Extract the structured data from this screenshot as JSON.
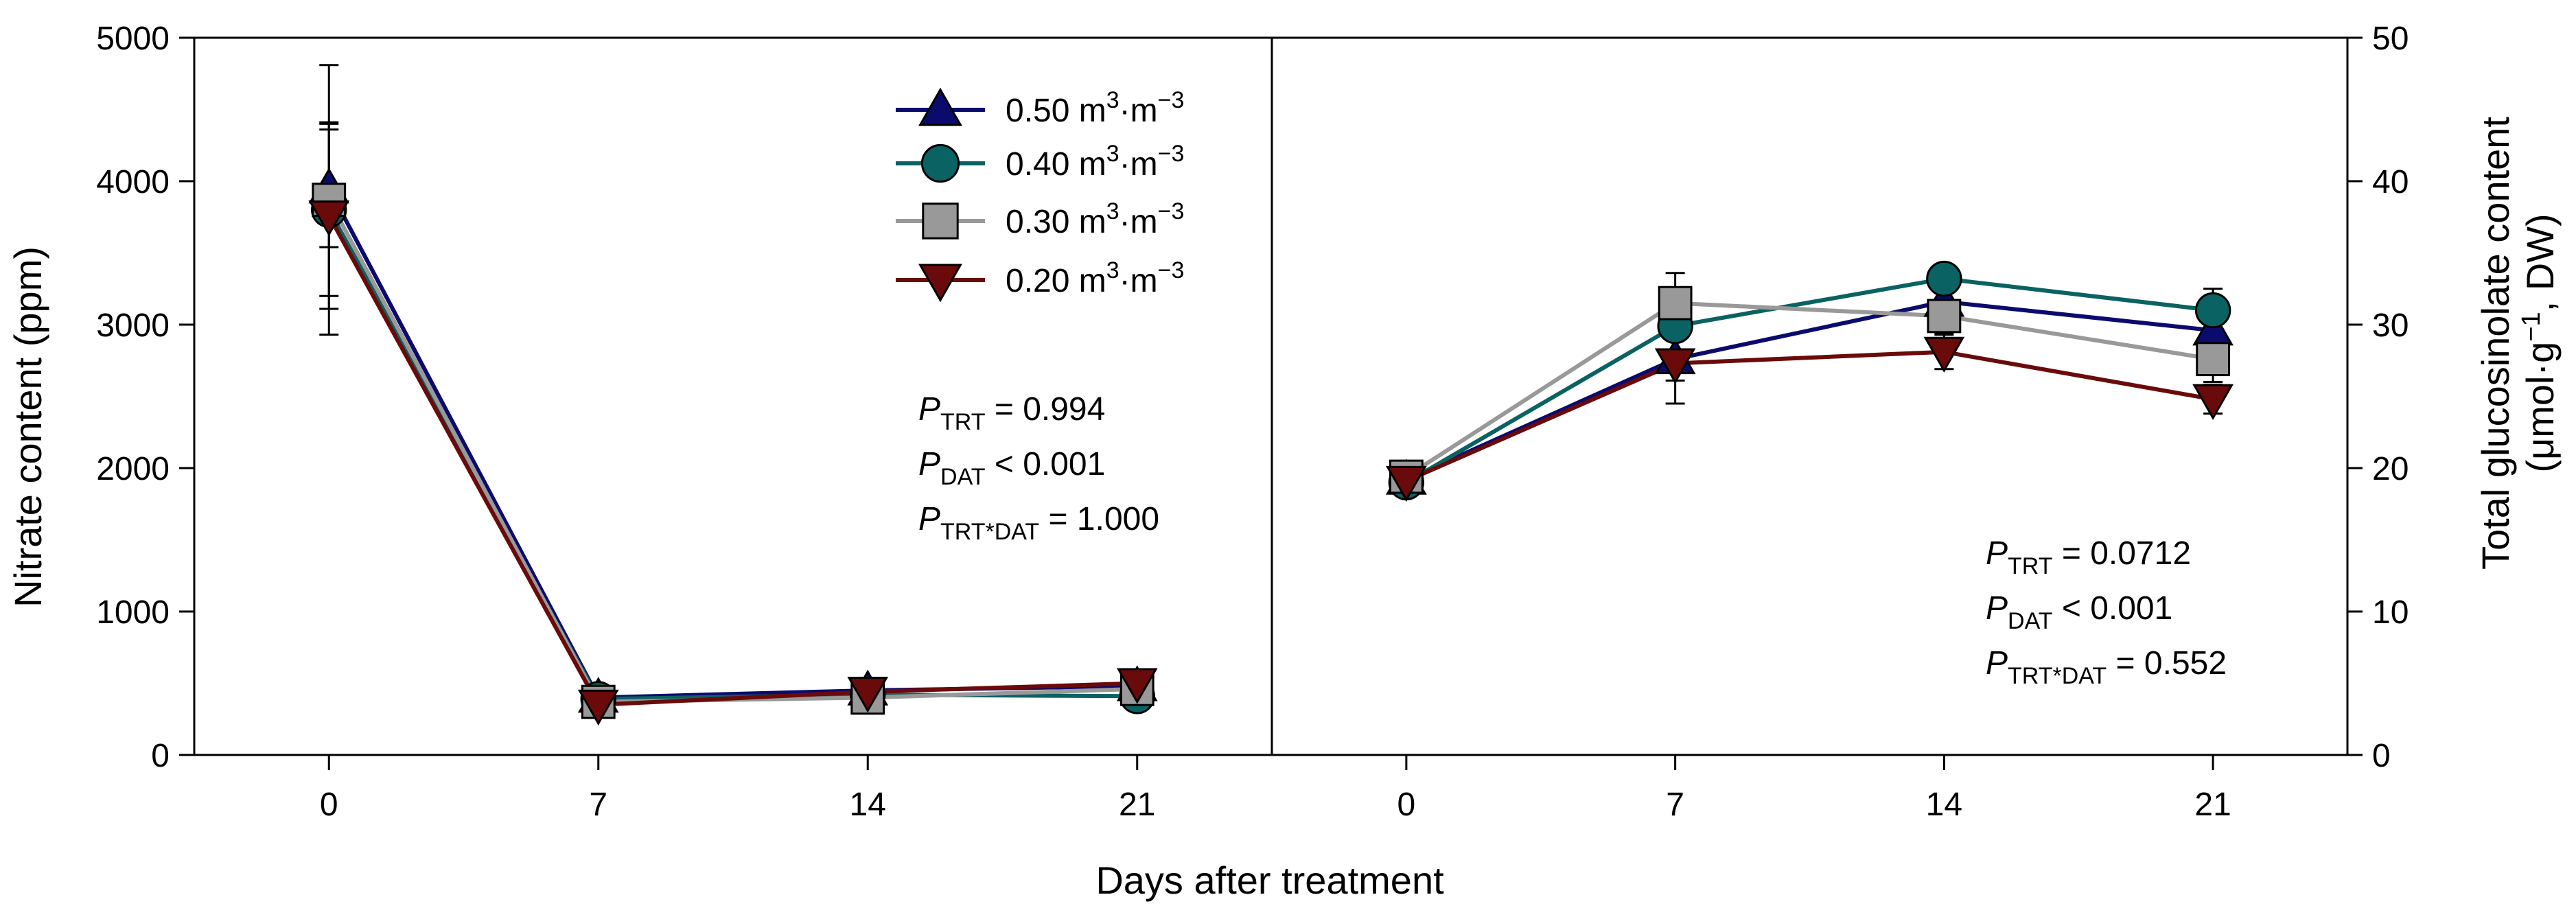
{
  "chart_data": {
    "type": "line",
    "shared_xlabel": "Days after treatment",
    "legend": [
      {
        "series": "0.50",
        "label_prefix": "0.50 m",
        "sup1": "3",
        "mid": "·m",
        "sup2": "−3",
        "color": "#0b0b6e",
        "marker": "triangle-up"
      },
      {
        "series": "0.40",
        "label_prefix": "0.40 m",
        "sup1": "3",
        "mid": "·m",
        "sup2": "−3",
        "color": "#0a6262",
        "marker": "circle"
      },
      {
        "series": "0.30",
        "label_prefix": "0.30 m",
        "sup1": "3",
        "mid": "·m",
        "sup2": "−3",
        "color": "#999999",
        "marker": "square"
      },
      {
        "series": "0.20",
        "label_prefix": "0.20 m",
        "sup1": "3",
        "mid": "·m",
        "sup2": "−3",
        "color": "#6b0a0a",
        "marker": "triangle-down"
      }
    ],
    "panels": [
      {
        "name": "nitrate",
        "ylabel": "Nitrate content (ppm)",
        "ylim": [
          0,
          5000
        ],
        "yticks": [
          0,
          1000,
          2000,
          3000,
          4000,
          5000
        ],
        "x": [
          0,
          7,
          14,
          21
        ],
        "xtick_labels": [
          "0",
          "7",
          "14",
          "21"
        ],
        "series": [
          {
            "name": "0.50",
            "values": [
              3950,
              400,
              450,
              480
            ],
            "err": [
              410,
              20,
              30,
              40
            ]
          },
          {
            "name": "0.40",
            "values": [
              3800,
              390,
              420,
              410
            ],
            "err": [
              600,
              20,
              30,
              30
            ]
          },
          {
            "name": "0.30",
            "values": [
              3870,
              370,
              400,
              460
            ],
            "err": [
              940,
              20,
              30,
              50
            ]
          },
          {
            "name": "0.20",
            "values": [
              3760,
              350,
              440,
              500
            ],
            "err": [
              650,
              20,
              30,
              50
            ]
          }
        ],
        "stats": [
          {
            "sub": "TRT",
            "text": " =  0.994"
          },
          {
            "sub": "DAT",
            "text": " < 0.001"
          },
          {
            "sub": "TRT*DAT",
            "text": " = 1.000"
          }
        ]
      },
      {
        "name": "glucosinolate",
        "ylabel_line1": "Total glucosinolate content",
        "ylabel_line2_pre": "(μmol·g",
        "ylabel_line2_sup": "−1",
        "ylabel_line2_post": ", DW)",
        "ylim": [
          0,
          50
        ],
        "yticks": [
          0,
          10,
          20,
          30,
          40,
          50
        ],
        "x": [
          0,
          7,
          14,
          21
        ],
        "xtick_labels": [
          "0",
          "7",
          "14",
          "21"
        ],
        "series": [
          {
            "name": "0.50",
            "values": [
              19.2,
              27.6,
              31.6,
              29.6
            ],
            "err": [
              0.5,
              1.5,
              1.2,
              1.5
            ]
          },
          {
            "name": "0.40",
            "values": [
              19.0,
              29.9,
              33.2,
              31.0
            ],
            "err": [
              0.5,
              1.8,
              1.0,
              1.5
            ]
          },
          {
            "name": "0.30",
            "values": [
              19.4,
              31.5,
              30.6,
              27.6
            ],
            "err": [
              0.5,
              2.1,
              1.2,
              1.6
            ]
          },
          {
            "name": "0.20",
            "values": [
              19.1,
              27.3,
              28.1,
              24.8
            ],
            "err": [
              0.5,
              2.8,
              1.2,
              1.0
            ]
          }
        ],
        "stats": [
          {
            "sub": "TRT",
            "text": " = 0.0712"
          },
          {
            "sub": "DAT",
            "text": " < 0.001"
          },
          {
            "sub": "TRT*DAT",
            "text": " = 0.552"
          }
        ]
      }
    ]
  }
}
